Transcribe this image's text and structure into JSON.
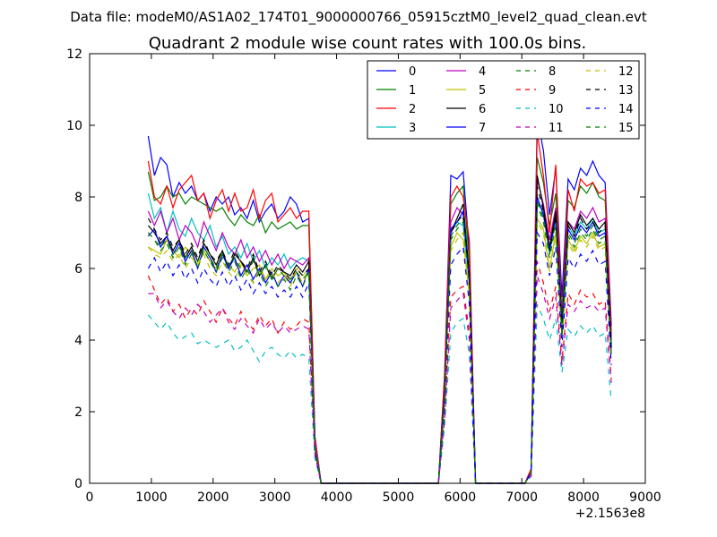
{
  "figure": {
    "suptitle": "Data file: modeM0/AS1A02_174T01_9000000766_05915cztM0_level2_quad_clean.evt"
  },
  "chart_data": {
    "type": "line",
    "title": "Quadrant 2 module wise count rates with 100.0s bins.",
    "xlabel": "",
    "ylabel": "",
    "x_offset_label": "+2.1563e8",
    "xlim": [
      0,
      9000
    ],
    "ylim": [
      0,
      12
    ],
    "x_ticks": [
      0,
      1000,
      2000,
      3000,
      4000,
      5000,
      6000,
      7000,
      8000,
      9000
    ],
    "x_tick_labels": [
      "0",
      "1000",
      "2000",
      "3000",
      "4000",
      "5000",
      "6000",
      "7000",
      "8000",
      "9000"
    ],
    "y_ticks": [
      0,
      2,
      4,
      6,
      8,
      10,
      12
    ],
    "y_tick_labels": [
      "0",
      "2",
      "4",
      "6",
      "8",
      "10",
      "12"
    ],
    "grid": false,
    "legend_position": "top-right",
    "legend_columns": 4,
    "x": [
      950,
      1050,
      1150,
      1250,
      1350,
      1450,
      1550,
      1650,
      1750,
      1850,
      1950,
      2050,
      2150,
      2250,
      2350,
      2450,
      2550,
      2650,
      2750,
      2850,
      2950,
      3050,
      3150,
      3250,
      3350,
      3450,
      3550,
      3650,
      3750,
      3850,
      5650,
      5750,
      5850,
      5950,
      6050,
      6150,
      6250,
      7050,
      7150,
      7250,
      7350,
      7450,
      7550,
      7650,
      7750,
      7850,
      7950,
      8050,
      8150,
      8250,
      8350,
      8450
    ],
    "series": [
      {
        "name": "0",
        "color": "#0000ff",
        "dash": "solid",
        "values": [
          9.7,
          8.6,
          9.1,
          8.9,
          8.0,
          8.4,
          8.1,
          8.3,
          7.9,
          8.1,
          7.6,
          8.0,
          7.8,
          8.0,
          7.5,
          7.7,
          7.4,
          7.9,
          7.3,
          7.6,
          7.8,
          7.4,
          7.6,
          8.0,
          7.8,
          7.3,
          7.4,
          1.3,
          0.0,
          0.0,
          0.0,
          3.0,
          8.6,
          8.5,
          8.7,
          6.5,
          0.0,
          0.0,
          0.4,
          10.2,
          9.3,
          7.5,
          8.8,
          5.2,
          8.5,
          8.2,
          8.8,
          8.6,
          9.0,
          8.6,
          8.4,
          4.4
        ]
      },
      {
        "name": "1",
        "color": "#008000",
        "dash": "solid",
        "values": [
          8.7,
          7.9,
          8.0,
          8.3,
          8.0,
          8.1,
          7.8,
          8.0,
          7.9,
          7.8,
          7.7,
          7.6,
          7.7,
          7.4,
          7.2,
          7.5,
          7.3,
          7.2,
          7.5,
          7.0,
          7.3,
          7.1,
          7.2,
          7.3,
          7.1,
          7.2,
          7.2,
          1.2,
          0.0,
          0.0,
          0.0,
          2.9,
          7.8,
          8.1,
          8.3,
          6.2,
          0.0,
          0.0,
          0.3,
          9.1,
          8.4,
          7.2,
          8.1,
          4.8,
          7.9,
          7.7,
          8.3,
          8.1,
          8.4,
          8.0,
          7.9,
          4.1
        ]
      },
      {
        "name": "2",
        "color": "#ff0000",
        "dash": "solid",
        "values": [
          9.0,
          8.0,
          7.8,
          8.3,
          7.7,
          8.2,
          8.4,
          8.6,
          7.9,
          8.1,
          7.4,
          7.9,
          8.2,
          7.6,
          8.1,
          7.6,
          7.7,
          8.2,
          7.4,
          7.9,
          8.1,
          7.3,
          7.5,
          7.7,
          7.4,
          7.6,
          7.6,
          1.3,
          0.0,
          0.0,
          0.0,
          3.1,
          8.0,
          8.3,
          8.0,
          6.8,
          0.0,
          0.0,
          0.4,
          9.8,
          8.6,
          7.0,
          8.9,
          4.5,
          8.2,
          7.6,
          8.5,
          8.3,
          8.4,
          8.1,
          8.2,
          4.2
        ]
      },
      {
        "name": "3",
        "color": "#00bfbf",
        "dash": "solid",
        "values": [
          8.1,
          7.4,
          7.7,
          7.0,
          7.6,
          7.1,
          6.9,
          7.4,
          7.0,
          6.8,
          7.2,
          6.6,
          6.9,
          6.4,
          6.6,
          6.3,
          6.7,
          6.2,
          6.5,
          6.0,
          6.3,
          6.1,
          6.4,
          6.0,
          6.2,
          6.3,
          6.2,
          1.1,
          0.0,
          0.0,
          0.0,
          2.5,
          7.0,
          7.3,
          7.2,
          5.6,
          0.0,
          0.0,
          0.3,
          7.8,
          7.6,
          6.4,
          7.5,
          4.3,
          7.2,
          6.9,
          7.3,
          7.1,
          7.4,
          7.0,
          7.1,
          3.9
        ]
      },
      {
        "name": "4",
        "color": "#bf00bf",
        "dash": "solid",
        "values": [
          7.6,
          7.2,
          7.6,
          7.0,
          7.4,
          6.8,
          7.2,
          7.0,
          6.6,
          7.3,
          6.9,
          6.5,
          7.0,
          6.6,
          6.4,
          6.8,
          6.3,
          6.6,
          6.2,
          6.5,
          6.1,
          6.4,
          6.0,
          6.3,
          6.2,
          6.1,
          6.3,
          1.1,
          0.0,
          0.0,
          0.0,
          2.7,
          7.3,
          7.7,
          7.5,
          5.9,
          0.0,
          0.0,
          0.3,
          8.5,
          7.8,
          6.8,
          7.7,
          4.6,
          7.3,
          7.1,
          7.6,
          7.4,
          7.7,
          7.3,
          7.4,
          4.0
        ]
      },
      {
        "name": "5",
        "color": "#bfbf00",
        "dash": "solid",
        "values": [
          6.6,
          6.5,
          6.4,
          6.8,
          6.5,
          6.3,
          6.6,
          6.4,
          6.1,
          6.5,
          6.2,
          6.0,
          6.4,
          6.1,
          5.9,
          6.2,
          5.8,
          6.0,
          6.1,
          5.7,
          6.0,
          5.8,
          5.9,
          5.6,
          6.0,
          5.8,
          6.0,
          1.0,
          0.0,
          0.0,
          0.0,
          2.4,
          6.6,
          7.0,
          6.8,
          5.3,
          0.0,
          0.0,
          0.3,
          7.4,
          7.1,
          6.0,
          7.0,
          4.1,
          6.8,
          6.5,
          6.9,
          6.7,
          7.0,
          6.6,
          6.7,
          3.7
        ]
      },
      {
        "name": "6",
        "color": "#000000",
        "dash": "solid",
        "values": [
          7.2,
          7.0,
          6.7,
          6.9,
          6.5,
          6.8,
          6.3,
          6.6,
          6.2,
          6.7,
          6.4,
          6.1,
          6.5,
          6.0,
          6.4,
          6.2,
          5.9,
          6.3,
          5.8,
          6.1,
          5.7,
          6.0,
          5.9,
          5.8,
          6.1,
          5.9,
          6.2,
          1.0,
          0.0,
          0.0,
          0.0,
          2.6,
          7.0,
          7.4,
          7.8,
          5.8,
          0.0,
          0.0,
          0.3,
          8.6,
          7.7,
          6.6,
          7.6,
          4.4,
          7.3,
          7.0,
          7.5,
          7.2,
          7.4,
          7.1,
          7.3,
          3.8
        ]
      },
      {
        "name": "7",
        "color": "#0000ff",
        "dash": "solid",
        "values": [
          6.9,
          7.1,
          6.6,
          6.9,
          6.4,
          6.7,
          6.2,
          6.5,
          6.0,
          6.6,
          6.3,
          5.9,
          6.4,
          6.0,
          6.3,
          5.8,
          6.1,
          5.7,
          6.0,
          5.6,
          5.9,
          5.5,
          5.8,
          5.6,
          5.9,
          5.5,
          6.0,
          1.0,
          0.0,
          0.0,
          0.0,
          2.5,
          7.1,
          7.3,
          7.6,
          5.7,
          0.0,
          0.0,
          0.3,
          8.0,
          7.5,
          6.5,
          7.4,
          4.3,
          7.1,
          6.8,
          7.2,
          7.0,
          7.3,
          6.9,
          7.0,
          3.6
        ]
      },
      {
        "name": "8",
        "color": "#008000",
        "dash": "dashed",
        "values": [
          7.0,
          6.8,
          6.5,
          6.7,
          6.3,
          6.6,
          6.1,
          6.4,
          6.0,
          6.5,
          6.2,
          5.9,
          6.3,
          5.9,
          6.2,
          5.7,
          6.0,
          5.6,
          5.9,
          5.5,
          5.8,
          5.5,
          5.7,
          5.4,
          5.8,
          5.5,
          5.9,
          1.0,
          0.0,
          0.0,
          0.0,
          2.4,
          6.9,
          7.2,
          7.4,
          5.6,
          0.0,
          0.0,
          0.3,
          7.9,
          7.4,
          6.4,
          7.3,
          4.2,
          7.0,
          6.7,
          7.1,
          6.9,
          7.2,
          6.8,
          6.9,
          3.6
        ]
      },
      {
        "name": "9",
        "color": "#ff0000",
        "dash": "dashed",
        "values": [
          5.8,
          5.4,
          5.0,
          5.2,
          4.8,
          5.0,
          4.6,
          4.9,
          4.7,
          5.1,
          4.8,
          4.5,
          4.9,
          4.6,
          4.4,
          4.8,
          4.5,
          4.3,
          4.7,
          4.4,
          4.6,
          4.2,
          4.5,
          4.3,
          4.4,
          4.6,
          4.5,
          0.8,
          0.0,
          0.0,
          0.0,
          1.9,
          5.2,
          5.4,
          5.5,
          4.2,
          0.0,
          0.0,
          0.2,
          6.2,
          5.6,
          4.8,
          5.5,
          3.4,
          5.3,
          5.0,
          5.4,
          5.2,
          5.3,
          5.0,
          5.1,
          2.9
        ]
      },
      {
        "name": "10",
        "color": "#00bfbf",
        "dash": "dashed",
        "values": [
          4.7,
          4.5,
          4.3,
          4.5,
          4.2,
          4.0,
          4.1,
          4.2,
          3.9,
          4.0,
          3.9,
          3.8,
          3.9,
          4.0,
          3.7,
          3.8,
          4.0,
          3.7,
          3.4,
          3.7,
          3.8,
          3.6,
          3.5,
          3.7,
          3.5,
          3.6,
          3.5,
          0.7,
          0.0,
          0.0,
          0.0,
          1.6,
          4.2,
          4.5,
          4.6,
          3.6,
          0.0,
          0.0,
          0.2,
          5.0,
          4.6,
          4.0,
          4.6,
          3.1,
          4.3,
          4.1,
          4.4,
          4.2,
          4.4,
          4.1,
          4.2,
          2.3
        ]
      },
      {
        "name": "11",
        "color": "#bf00bf",
        "dash": "dashed",
        "values": [
          5.3,
          5.3,
          4.9,
          5.1,
          4.8,
          4.6,
          4.9,
          4.7,
          5.0,
          4.8,
          4.5,
          4.7,
          4.9,
          4.5,
          4.3,
          4.6,
          4.4,
          4.2,
          4.6,
          4.3,
          4.5,
          4.2,
          4.4,
          4.2,
          4.3,
          4.4,
          4.3,
          0.8,
          0.0,
          0.0,
          0.0,
          1.8,
          4.9,
          5.1,
          5.3,
          4.0,
          0.0,
          0.0,
          0.2,
          5.8,
          5.3,
          4.6,
          5.2,
          3.3,
          5.0,
          4.8,
          5.1,
          4.9,
          5.0,
          4.8,
          4.9,
          2.8
        ]
      },
      {
        "name": "12",
        "color": "#bfbf00",
        "dash": "dashed",
        "values": [
          6.6,
          6.4,
          6.3,
          6.5,
          6.2,
          6.4,
          6.0,
          6.3,
          6.1,
          6.4,
          6.0,
          5.8,
          6.2,
          5.9,
          5.7,
          6.1,
          5.8,
          5.6,
          6.0,
          5.7,
          5.9,
          5.6,
          5.8,
          5.5,
          5.9,
          5.6,
          5.9,
          1.0,
          0.0,
          0.0,
          0.0,
          2.3,
          6.5,
          6.8,
          7.0,
          5.2,
          0.0,
          0.0,
          0.3,
          7.3,
          7.0,
          5.9,
          6.9,
          4.0,
          6.7,
          6.4,
          6.8,
          6.6,
          6.9,
          6.5,
          6.6,
          3.6
        ]
      },
      {
        "name": "13",
        "color": "#000000",
        "dash": "dashed",
        "values": [
          7.4,
          7.1,
          6.8,
          7.0,
          6.6,
          6.8,
          6.4,
          6.7,
          6.3,
          6.8,
          6.4,
          6.2,
          6.5,
          6.1,
          6.5,
          6.2,
          6.0,
          6.4,
          5.9,
          6.2,
          5.8,
          6.1,
          5.9,
          5.7,
          6.0,
          5.8,
          6.0,
          1.0,
          0.0,
          0.0,
          0.0,
          2.5,
          7.0,
          7.3,
          7.5,
          5.7,
          0.0,
          0.0,
          0.3,
          8.3,
          7.6,
          6.5,
          7.5,
          4.3,
          7.2,
          6.9,
          7.4,
          7.1,
          7.3,
          7.0,
          7.2,
          3.7
        ]
      },
      {
        "name": "14",
        "color": "#0000ff",
        "dash": "dashed",
        "values": [
          6.0,
          6.3,
          5.9,
          6.2,
          5.8,
          6.1,
          5.7,
          6.0,
          5.6,
          6.0,
          5.7,
          5.5,
          5.9,
          5.5,
          5.8,
          5.4,
          5.7,
          5.3,
          5.6,
          5.3,
          5.5,
          5.2,
          5.4,
          5.2,
          5.5,
          5.2,
          5.6,
          0.9,
          0.0,
          0.0,
          0.0,
          2.2,
          6.1,
          6.4,
          6.6,
          5.0,
          0.0,
          0.0,
          0.3,
          7.0,
          6.7,
          5.8,
          6.6,
          3.8,
          6.3,
          6.0,
          6.4,
          6.2,
          6.5,
          6.1,
          6.2,
          3.3
        ]
      },
      {
        "name": "15",
        "color": "#008000",
        "dash": "dashed",
        "values": [
          7.0,
          6.8,
          6.6,
          6.8,
          6.4,
          6.6,
          6.3,
          6.5,
          6.2,
          6.6,
          6.3,
          6.0,
          6.4,
          6.1,
          6.3,
          6.0,
          5.9,
          6.2,
          5.8,
          6.1,
          5.7,
          6.0,
          5.8,
          5.7,
          5.9,
          5.7,
          5.9,
          1.0,
          0.0,
          0.0,
          0.0,
          2.4,
          6.8,
          7.1,
          7.3,
          5.5,
          0.0,
          0.0,
          0.3,
          7.8,
          7.3,
          6.3,
          7.2,
          4.1,
          6.9,
          6.6,
          7.0,
          6.8,
          7.1,
          6.7,
          6.8,
          3.5
        ]
      }
    ]
  }
}
